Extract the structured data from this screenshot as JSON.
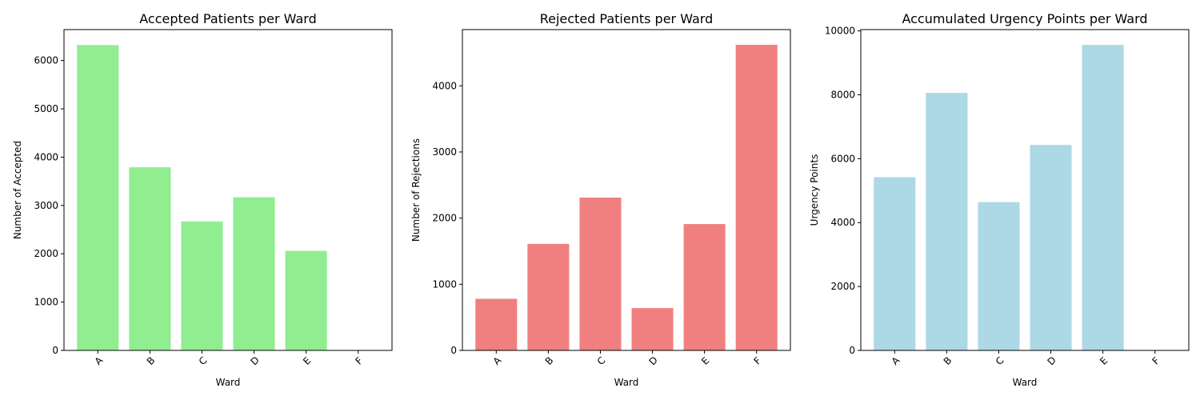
{
  "chart_data": [
    {
      "type": "bar",
      "title": "Accepted Patients per Ward",
      "xlabel": "Ward",
      "ylabel": "Number of Accepted",
      "categories": [
        "A",
        "B",
        "C",
        "D",
        "E",
        "F"
      ],
      "values": [
        6320,
        3790,
        2670,
        3170,
        2060,
        0
      ],
      "ylim": [
        0,
        6640
      ],
      "yticks": [
        0,
        1000,
        2000,
        3000,
        4000,
        5000,
        6000
      ],
      "color": "#90ee90",
      "grid": false
    },
    {
      "type": "bar",
      "title": "Rejected Patients per Ward",
      "xlabel": "Ward",
      "ylabel": "Number of Rejections",
      "categories": [
        "A",
        "B",
        "C",
        "D",
        "E",
        "F"
      ],
      "values": [
        780,
        1610,
        2310,
        640,
        1910,
        4620
      ],
      "ylim": [
        0,
        4850
      ],
      "yticks": [
        0,
        1000,
        2000,
        3000,
        4000
      ],
      "color": "#f08080",
      "grid": false
    },
    {
      "type": "bar",
      "title": "Accumulated Urgency Points per Ward",
      "xlabel": "Ward",
      "ylabel": "Urgency Points",
      "categories": [
        "A",
        "B",
        "C",
        "D",
        "E",
        "F"
      ],
      "values": [
        5420,
        8060,
        4640,
        6430,
        9560,
        0
      ],
      "ylim": [
        0,
        10040
      ],
      "yticks": [
        0,
        2000,
        4000,
        6000,
        8000,
        10000
      ],
      "color": "#add8e6",
      "grid": false
    }
  ]
}
